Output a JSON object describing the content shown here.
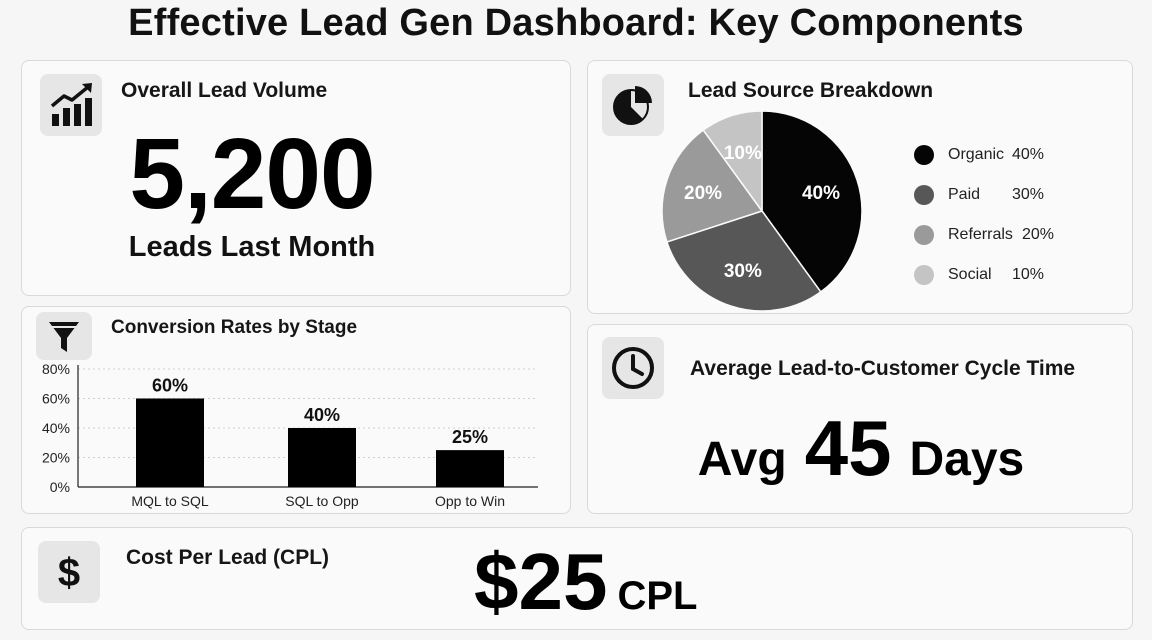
{
  "page": {
    "title": "Effective Lead Gen Dashboard: Key Components"
  },
  "lead_volume": {
    "title": "Overall Lead Volume",
    "icon": "trending-chart-icon",
    "value": "5,200",
    "subtitle": "Leads Last Month"
  },
  "lead_source": {
    "title": "Lead Source Breakdown",
    "icon": "pie-chart-icon"
  },
  "conversion": {
    "title": "Conversion Rates by Stage",
    "icon": "funnel-icon"
  },
  "cycle_time": {
    "title": "Average Lead-to-Customer Cycle Time",
    "icon": "clock-icon",
    "prefix": "Avg",
    "value": "45",
    "suffix": "Days"
  },
  "cpl": {
    "title": "Cost Per Lead (CPL)",
    "icon": "dollar-icon",
    "value": "$25",
    "unit": "CPL"
  },
  "chart_data": [
    {
      "type": "pie",
      "title": "Lead Source Breakdown",
      "categories": [
        "Organic",
        "Paid",
        "Referrals",
        "Social"
      ],
      "values": [
        40,
        30,
        20,
        10
      ],
      "labels": [
        "40%",
        "30%",
        "20%",
        "10%"
      ],
      "legend_labels": [
        "40%",
        "30%",
        "20%",
        "10%"
      ],
      "colors": [
        "#050505",
        "#575757",
        "#9a9a9a",
        "#c4c4c4"
      ],
      "legend_position": "right"
    },
    {
      "type": "bar",
      "title": "Conversion Rates by Stage",
      "categories": [
        "MQL to SQL",
        "SQL to Opp",
        "Opp to Win"
      ],
      "values": [
        60,
        40,
        25
      ],
      "labels": [
        "60%",
        "40%",
        "25%"
      ],
      "ylim": [
        0,
        80
      ],
      "yticks": [
        0,
        20,
        40,
        60,
        80
      ],
      "ytick_labels": [
        "0%",
        "20%",
        "40%",
        "60%",
        "80%"
      ],
      "grid": true,
      "bar_color": "#000000"
    }
  ]
}
